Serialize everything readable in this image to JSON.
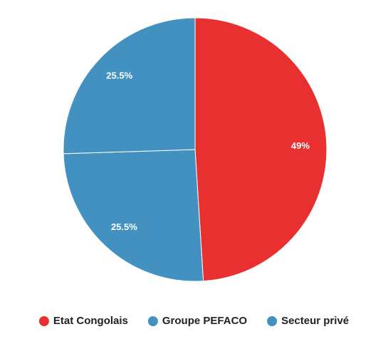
{
  "chart_data": {
    "type": "pie",
    "categories": [
      "Etat Congolais",
      "Groupe PEFACO",
      "Secteur privé"
    ],
    "values": [
      49,
      25.5,
      25.5
    ],
    "value_labels": [
      "49%",
      "25.5%",
      "25.5%"
    ],
    "colors": [
      "#e83030",
      "#4391c0",
      "#4391c0"
    ],
    "legend": "bottom"
  }
}
